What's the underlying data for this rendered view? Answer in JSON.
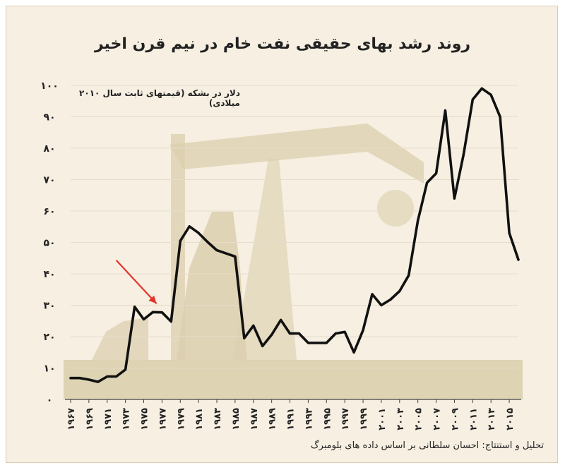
{
  "chart_data": {
    "type": "line",
    "title": "روند رشد بهای حقیقی نفت خام در نیم قرن اخیر",
    "ylabel": "دلار در بشکه (قیمتهای ثابت سال ۲۰۱۰ میلادی)",
    "source": "تحلیل و استنتاج: احسان سلطانی بر اساس داده های بلومبرگ",
    "ylim": [
      0,
      100
    ],
    "yticks": [
      {
        "v": 0,
        "label": "۰"
      },
      {
        "v": 10,
        "label": "۱۰"
      },
      {
        "v": 20,
        "label": "۲۰"
      },
      {
        "v": 30,
        "label": "۳۰"
      },
      {
        "v": 40,
        "label": "۴۰"
      },
      {
        "v": 50,
        "label": "۵۰"
      },
      {
        "v": 60,
        "label": "۶۰"
      },
      {
        "v": 70,
        "label": "۷۰"
      },
      {
        "v": 80,
        "label": "۸۰"
      },
      {
        "v": 90,
        "label": "۹۰"
      },
      {
        "v": 100,
        "label": "۱۰۰"
      }
    ],
    "xticks": [
      {
        "v": 1967,
        "label": "۱۹۶۷"
      },
      {
        "v": 1969,
        "label": "۱۹۶۹"
      },
      {
        "v": 1971,
        "label": "۱۹۷۱"
      },
      {
        "v": 1973,
        "label": "۱۹۷۳"
      },
      {
        "v": 1975,
        "label": "۱۹۷۵"
      },
      {
        "v": 1977,
        "label": "۱۹۷۷"
      },
      {
        "v": 1979,
        "label": "۱۹۷۹"
      },
      {
        "v": 1981,
        "label": "۱۹۸۱"
      },
      {
        "v": 1983,
        "label": "۱۹۸۳"
      },
      {
        "v": 1985,
        "label": "۱۹۸۵"
      },
      {
        "v": 1987,
        "label": "۱۹۸۷"
      },
      {
        "v": 1989,
        "label": "۱۹۸۹"
      },
      {
        "v": 1991,
        "label": "۱۹۹۱"
      },
      {
        "v": 1993,
        "label": "۱۹۹۳"
      },
      {
        "v": 1995,
        "label": "۱۹۹۵"
      },
      {
        "v": 1997,
        "label": "۱۹۹۷"
      },
      {
        "v": 1999,
        "label": "۱۹۹۹"
      },
      {
        "v": 2001,
        "label": "۲۰۰۱"
      },
      {
        "v": 2003,
        "label": "۲۰۰۳"
      },
      {
        "v": 2005,
        "label": "۲۰۰۵"
      },
      {
        "v": 2007,
        "label": "۲۰۰۷"
      },
      {
        "v": 2009,
        "label": "۲۰۰۹"
      },
      {
        "v": 2011,
        "label": "۲۰۱۱"
      },
      {
        "v": 2013,
        "label": "۲۰۱۳"
      },
      {
        "v": 2015,
        "label": "۲۰۱۵"
      }
    ],
    "xlim": [
      1967,
      2016
    ],
    "grid": true,
    "series": [
      {
        "x": [
          1967,
          1968,
          1969,
          1970,
          1971,
          1972,
          1973,
          1974,
          1975,
          1976,
          1977,
          1978,
          1979,
          1980,
          1981,
          1982,
          1983,
          1984,
          1985,
          1986,
          1987,
          1988,
          1989,
          1990,
          1991,
          1992,
          1993,
          1994,
          1995,
          1996,
          1997,
          1998,
          1999,
          2000,
          2001,
          2002,
          2003,
          2004,
          2005,
          2006,
          2007,
          2008,
          2009,
          2010,
          2011,
          2012,
          2013,
          2014,
          2015,
          2016
        ],
        "values": [
          6.8,
          6.8,
          6.3,
          5.6,
          7.3,
          7.3,
          9.5,
          29.5,
          25.5,
          27.8,
          27.7,
          24.8,
          50.5,
          55.1,
          53.0,
          50.1,
          47.5,
          46.5,
          45.5,
          19.5,
          23.5,
          17.0,
          20.6,
          25.3,
          21.0,
          21.0,
          18.0,
          18.0,
          18.0,
          21.0,
          21.5,
          15.0,
          22.0,
          33.5,
          30.0,
          31.8,
          34.5,
          39.5,
          57.0,
          69.0,
          72.0,
          92.0,
          64.0,
          78.0,
          95.5,
          99.0,
          97.0,
          90.0,
          53.0,
          44.5
        ]
      }
    ],
    "annotation": {
      "type": "arrow",
      "from": [
        1972.0,
        44.3
      ],
      "to": [
        1976.4,
        30.5
      ],
      "color": "#e2352b"
    }
  }
}
